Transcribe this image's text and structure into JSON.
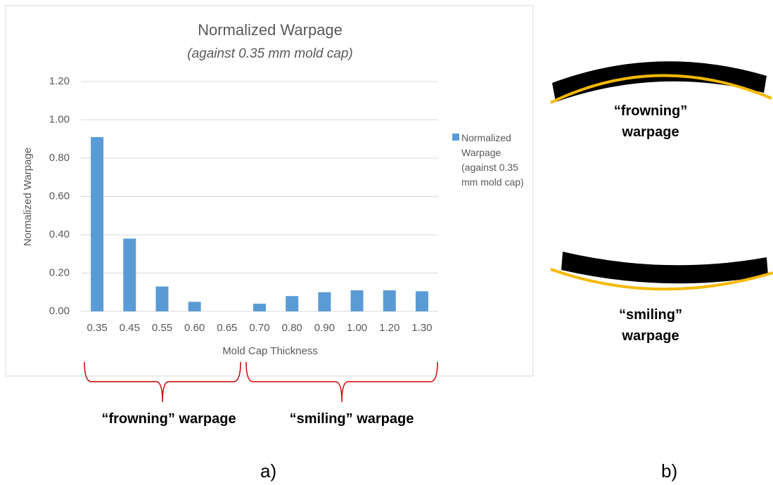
{
  "chart_data": {
    "type": "bar",
    "title": "Normalized Warpage",
    "subtitle": "(against 0.35 mm mold cap)",
    "x_label": "Mold Cap Thickness",
    "y_label": "Normalized Warpage",
    "categories": [
      "0.35",
      "0.45",
      "0.55",
      "0.60",
      "0.65",
      "0.70",
      "0.80",
      "0.90",
      "1.00",
      "1.20",
      "1.30"
    ],
    "series": [
      {
        "name": "Normalized Warpage (against 0.35 mm mold cap)",
        "color": "#5b9bd5",
        "values": [
          0.91,
          0.38,
          0.13,
          0.05,
          0,
          0.04,
          0.08,
          0.1,
          0.11,
          0.11,
          0.105
        ]
      }
    ],
    "ylim": [
      0,
      1.2
    ],
    "yticks": [
      {
        "value": 0,
        "label": "0.00"
      },
      {
        "value": 0.2,
        "label": "0.20"
      },
      {
        "value": 0.4,
        "label": "0.40"
      },
      {
        "value": 0.6,
        "label": "0.60"
      },
      {
        "value": 0.8,
        "label": "0.80"
      },
      {
        "value": 1.0,
        "label": "1.00"
      },
      {
        "value": 1.2,
        "label": "1.20"
      }
    ],
    "grid": true,
    "legend": "right",
    "annotations": [
      "“frowning” warpage",
      "“smiling” warpage"
    ],
    "side_labels": [
      "“frowning” warpage",
      "“smiling” warpage"
    ],
    "panel_labels": [
      "a)",
      "b)"
    ]
  }
}
